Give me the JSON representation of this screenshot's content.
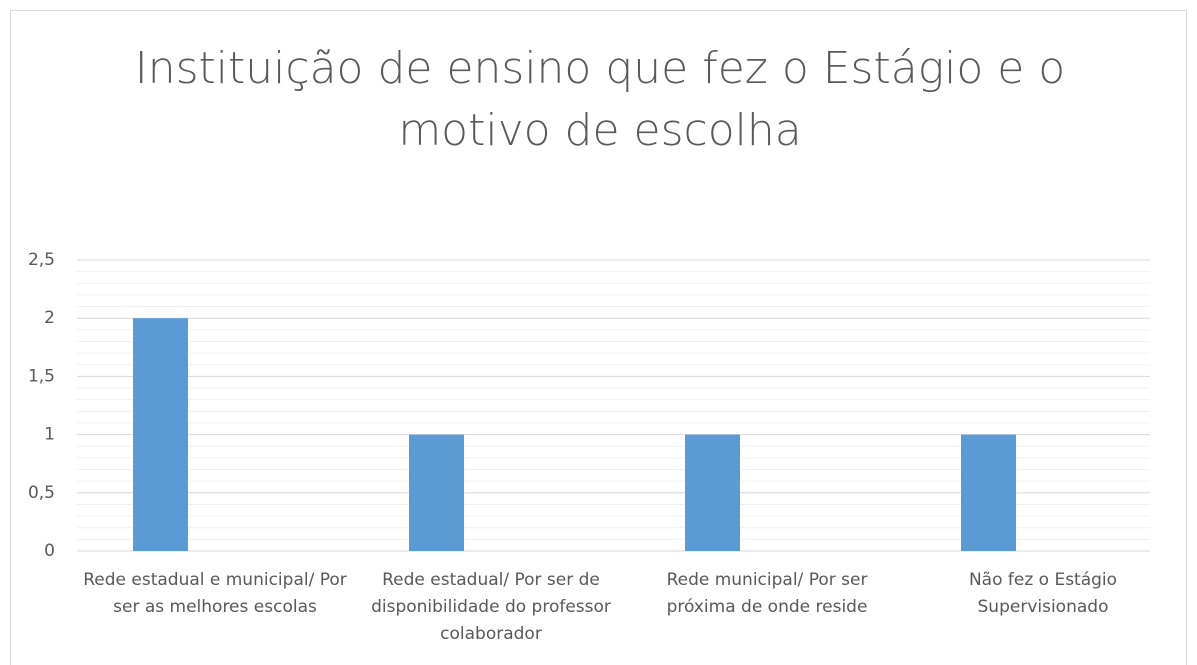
{
  "chart_data": {
    "type": "bar",
    "title": "Instituição de ensino que fez o Estágio e o motivo de escolha",
    "categories": [
      "Rede estadual e municipal/ Por ser as melhores escolas",
      "Rede estadual/ Por ser de disponibilidade do professor colaborador",
      "Rede municipal/ Por ser próxima de onde reside",
      "Não fez o Estágio Supervisionado"
    ],
    "values": [
      2,
      1,
      1,
      1
    ],
    "color": "#5b9bd5",
    "ylim": [
      0,
      2.5
    ],
    "yticks": [
      0,
      {
        "value": 0.5,
        "label": "0,5"
      },
      1,
      {
        "value": 1.5,
        "label": "1,5"
      },
      2,
      {
        "value": 2.5,
        "label": "2,5"
      }
    ],
    "yminorticks": [
      0.1,
      0.2,
      0.3,
      0.4,
      0.6,
      0.7,
      0.8,
      0.9,
      1.1,
      1.2,
      1.3,
      1.4,
      1.6,
      1.7,
      1.8,
      1.9,
      2.1,
      2.2,
      2.3,
      2.4
    ],
    "grid": true
  }
}
